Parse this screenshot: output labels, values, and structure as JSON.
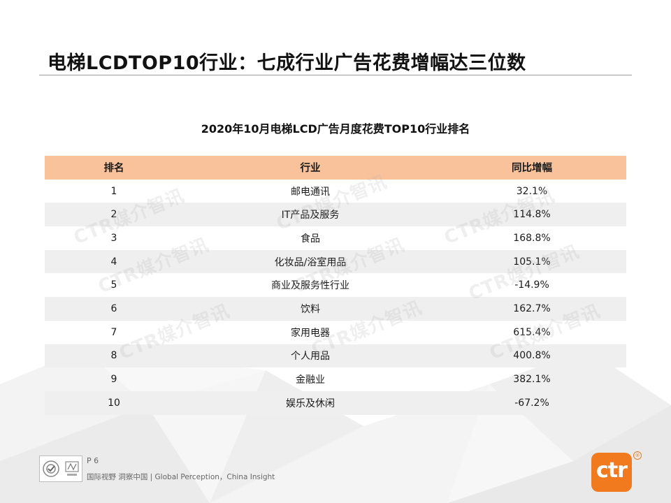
{
  "title": "电梯LCDTOP10行业：七成行业广告花费增幅达三位数",
  "subtitle": "2020年10月电梯LCD广告月度花费TOP10行业排名",
  "table": {
    "headers": [
      "排名",
      "行业",
      "同比增幅"
    ],
    "rows": [
      [
        "1",
        "邮电通讯",
        "32.1%"
      ],
      [
        "2",
        "IT产品及服务",
        "114.8%"
      ],
      [
        "3",
        "食品",
        "168.8%"
      ],
      [
        "4",
        "化妆品/浴室用品",
        "105.1%"
      ],
      [
        "5",
        "商业及服务性行业",
        "-14.9%"
      ],
      [
        "6",
        "饮料",
        "162.7%"
      ],
      [
        "7",
        "家用电器",
        "615.4%"
      ],
      [
        "8",
        "个人用品",
        "400.8%"
      ],
      [
        "9",
        "金融业",
        "382.1%"
      ],
      [
        "10",
        "娱乐及休闲",
        "-67.2%"
      ]
    ]
  },
  "watermark": "CTR媒介智讯",
  "footer": {
    "page": "P 6",
    "slogan": "国际视野 洞察中国 | Global Perception，China Insight"
  },
  "logo": {
    "text": "ctr",
    "color": "#f07a1d"
  },
  "colors": {
    "header_bg": "#f9c29b",
    "row_shade": "#efefef"
  }
}
